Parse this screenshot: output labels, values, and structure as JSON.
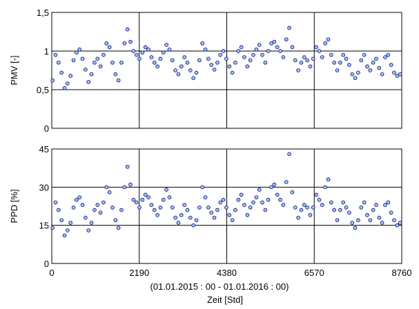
{
  "chart_data": [
    {
      "type": "scatter",
      "ylabel": "PMV [-]",
      "ylim": [
        0,
        1.5
      ],
      "yticks": [
        0,
        0.5,
        1,
        1.5
      ],
      "ytick_labels": [
        "0",
        "0,5",
        "1",
        "1,5"
      ],
      "xlim": [
        0,
        8760
      ],
      "xticks": [
        0,
        2190,
        4380,
        6570,
        8760
      ],
      "grid": true,
      "marker_fill": "#a9c4ff",
      "marker_edge": "#0a1a7a",
      "series": [
        {
          "x": [
            20,
            95,
            170,
            245,
            320,
            395,
            470,
            545,
            620,
            695,
            770,
            845,
            920,
            995,
            1070,
            1145,
            1220,
            1295,
            1370,
            1445,
            1520,
            1595,
            1670,
            1745,
            1820,
            1895,
            1970,
            2045,
            2120,
            2195,
            2270,
            2345,
            2420,
            2495,
            2570,
            2645,
            2720,
            2795,
            2870,
            2945,
            3020,
            3095,
            3170,
            3245,
            3320,
            3395,
            3470,
            3545,
            3620,
            3695,
            3770,
            3845,
            3920,
            3995,
            4070,
            4145,
            4220,
            4295,
            4370,
            4445,
            4520,
            4595,
            4670,
            4745,
            4820,
            4895,
            4970,
            5045,
            5120,
            5195,
            5270,
            5345,
            5420,
            5495,
            5570,
            5645,
            5720,
            5795,
            5870,
            5945,
            6020,
            6095,
            6170,
            6245,
            6320,
            6395,
            6470,
            6545,
            6620,
            6695,
            6770,
            6845,
            6920,
            6995,
            7070,
            7145,
            7220,
            7295,
            7370,
            7445,
            7520,
            7595,
            7670,
            7745,
            7820,
            7895,
            7970,
            8045,
            8120,
            8195,
            8270,
            8345,
            8420,
            8495,
            8570,
            8645,
            8720
          ],
          "y": [
            0.62,
            0.95,
            0.85,
            0.72,
            0.52,
            0.58,
            0.68,
            0.88,
            0.98,
            1.02,
            0.9,
            0.76,
            0.6,
            0.7,
            0.85,
            0.9,
            0.8,
            0.95,
            1.1,
            1.05,
            0.85,
            0.7,
            0.62,
            0.85,
            1.1,
            1.28,
            1.12,
            1.0,
            0.95,
            0.9,
            0.98,
            1.05,
            1.02,
            0.92,
            0.85,
            0.8,
            0.9,
            0.98,
            1.08,
            1.02,
            0.88,
            0.75,
            0.7,
            0.8,
            0.92,
            0.85,
            0.75,
            0.65,
            0.72,
            0.88,
            1.1,
            1.02,
            0.9,
            0.82,
            0.76,
            0.85,
            0.95,
            1.0,
            0.9,
            0.8,
            0.72,
            0.85,
            1.0,
            1.05,
            0.92,
            0.8,
            0.88,
            0.95,
            1.02,
            1.08,
            0.95,
            0.85,
            1.0,
            1.1,
            1.12,
            1.05,
            1.0,
            0.92,
            1.15,
            1.3,
            1.05,
            0.88,
            0.75,
            0.85,
            0.92,
            0.88,
            0.8,
            0.9,
            1.05,
            1.0,
            0.92,
            1.1,
            1.15,
            0.95,
            0.85,
            0.75,
            0.85,
            0.95,
            0.9,
            0.82,
            0.7,
            0.65,
            0.72,
            0.88,
            0.95,
            0.8,
            0.75,
            0.85,
            0.9,
            0.78,
            0.7,
            0.92,
            0.95,
            0.82,
            0.72,
            0.68,
            0.7
          ]
        }
      ]
    },
    {
      "type": "scatter",
      "ylabel": "PPD [%]",
      "ylim": [
        0,
        45
      ],
      "yticks": [
        0,
        15,
        30,
        45
      ],
      "ytick_labels": [
        "0",
        "15",
        "30",
        "45"
      ],
      "xlim": [
        0,
        8760
      ],
      "xticks": [
        0,
        2190,
        4380,
        6570,
        8760
      ],
      "xtick_labels": [
        "0",
        "2190",
        "4380",
        "6570",
        "8760"
      ],
      "grid": true,
      "xlabel_range": "(01.01.2015 : 00 - 01.01.2016 : 00)",
      "xlabel": "Zeit  [Std]",
      "marker_fill": "#a9c4ff",
      "marker_edge": "#0a1a7a",
      "series": [
        {
          "x": [
            20,
            95,
            170,
            245,
            320,
            395,
            470,
            545,
            620,
            695,
            770,
            845,
            920,
            995,
            1070,
            1145,
            1220,
            1295,
            1370,
            1445,
            1520,
            1595,
            1670,
            1745,
            1820,
            1895,
            1970,
            2045,
            2120,
            2195,
            2270,
            2345,
            2420,
            2495,
            2570,
            2645,
            2720,
            2795,
            2870,
            2945,
            3020,
            3095,
            3170,
            3245,
            3320,
            3395,
            3470,
            3545,
            3620,
            3695,
            3770,
            3845,
            3920,
            3995,
            4070,
            4145,
            4220,
            4295,
            4370,
            4445,
            4520,
            4595,
            4670,
            4745,
            4820,
            4895,
            4970,
            5045,
            5120,
            5195,
            5270,
            5345,
            5420,
            5495,
            5570,
            5645,
            5720,
            5795,
            5870,
            5945,
            6020,
            6095,
            6170,
            6245,
            6320,
            6395,
            6470,
            6545,
            6620,
            6695,
            6770,
            6845,
            6920,
            6995,
            7070,
            7145,
            7220,
            7295,
            7370,
            7445,
            7520,
            7595,
            7670,
            7745,
            7820,
            7895,
            7970,
            8045,
            8120,
            8195,
            8270,
            8345,
            8420,
            8495,
            8570,
            8645,
            8720
          ],
          "y": [
            14,
            24,
            21,
            17,
            11,
            13,
            16,
            22,
            25,
            26,
            23,
            18,
            13,
            16,
            21,
            23,
            20,
            24,
            30,
            28,
            22,
            17,
            14,
            21,
            30,
            38,
            31,
            25,
            24,
            22,
            25,
            27,
            26,
            23,
            21,
            19,
            22,
            25,
            29,
            26,
            22,
            18,
            16,
            19,
            23,
            21,
            18,
            15,
            17,
            22,
            30,
            26,
            22,
            20,
            18,
            21,
            24,
            25,
            22,
            19,
            17,
            21,
            25,
            27,
            23,
            19,
            22,
            24,
            26,
            29,
            24,
            21,
            25,
            30,
            31,
            27,
            25,
            23,
            32,
            43,
            28,
            22,
            18,
            21,
            23,
            22,
            19,
            22,
            27,
            25,
            23,
            30,
            33,
            24,
            21,
            17,
            21,
            24,
            22,
            20,
            16,
            14,
            17,
            22,
            24,
            19,
            17,
            21,
            23,
            18,
            16,
            23,
            24,
            20,
            17,
            15,
            16
          ]
        }
      ]
    }
  ]
}
